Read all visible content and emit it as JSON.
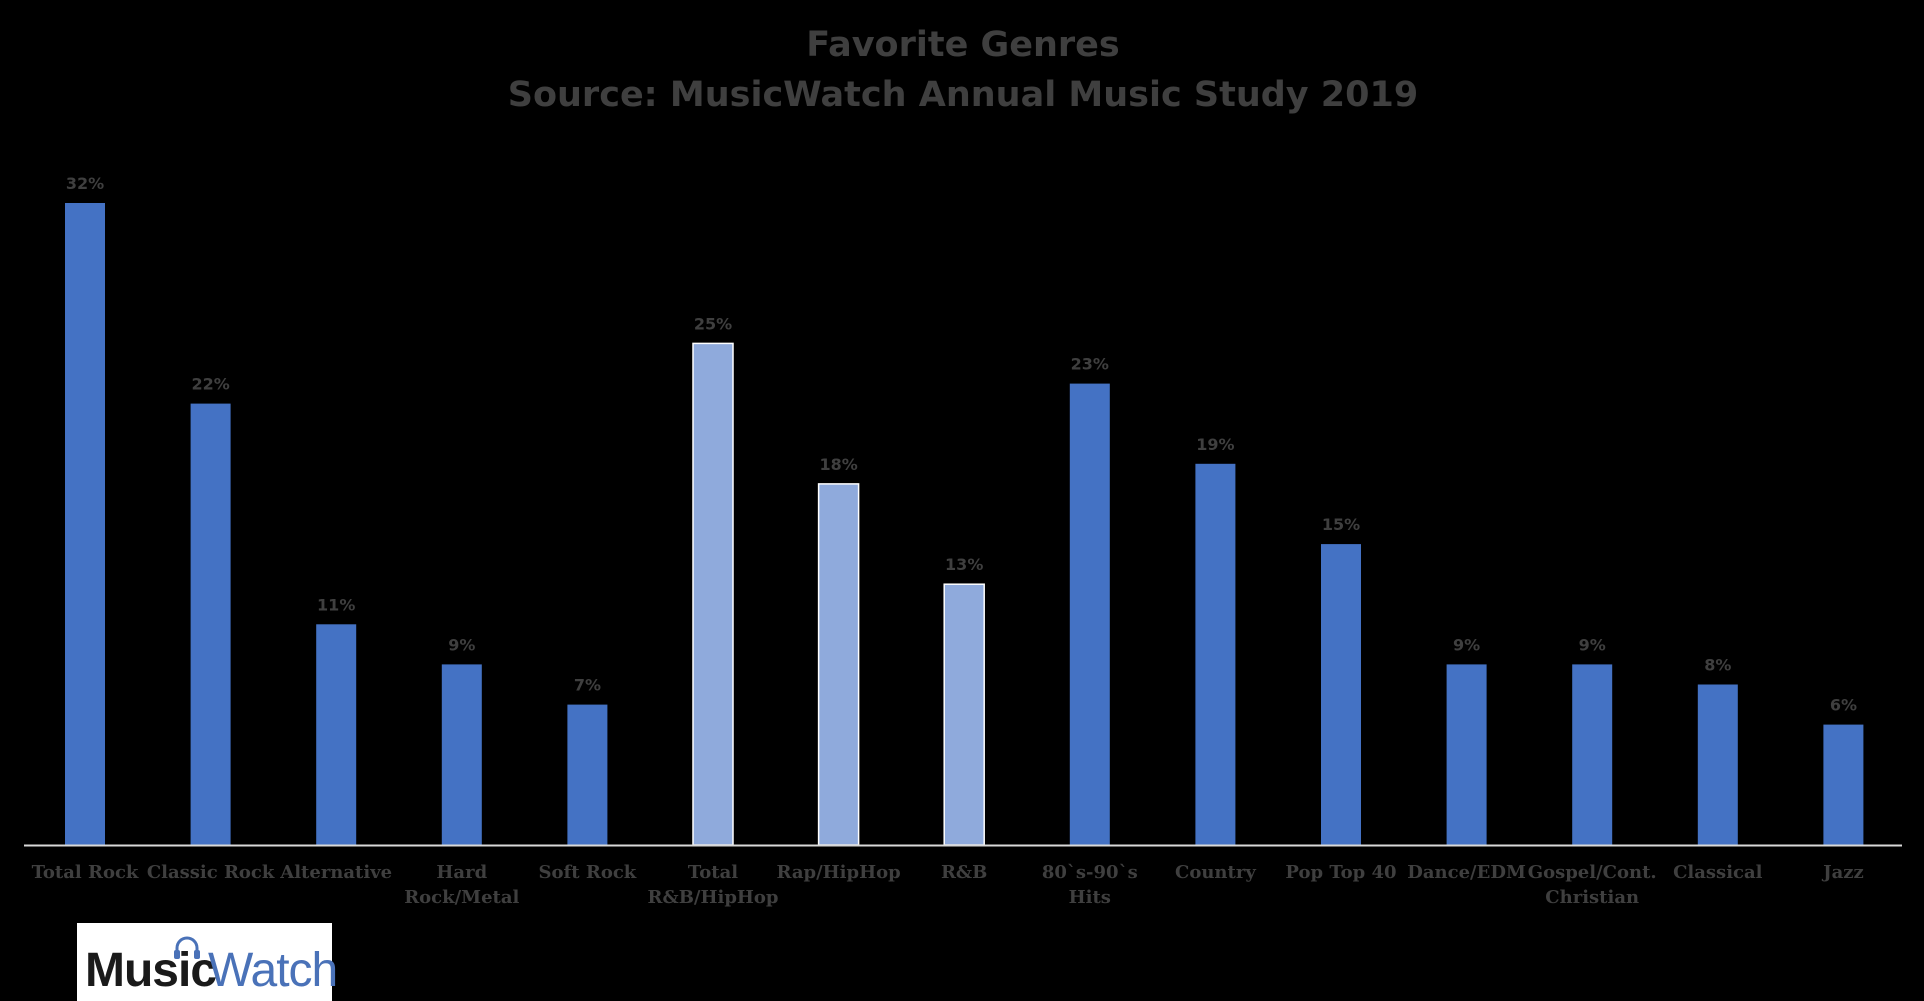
{
  "chart_data": {
    "type": "bar",
    "title": "Favorite Genres",
    "subtitle": "Source: MusicWatch Annual Music Study 2019",
    "categories": [
      [
        "Total Rock"
      ],
      [
        "Classic Rock"
      ],
      [
        "Alternative"
      ],
      [
        "Hard",
        "Rock/Metal"
      ],
      [
        "Soft Rock"
      ],
      [
        "Total",
        "R&B/HipHop"
      ],
      [
        "Rap/HipHop"
      ],
      [
        "R&B"
      ],
      [
        "80`s-90`s",
        "Hits"
      ],
      [
        "Country"
      ],
      [
        "Pop Top 40"
      ],
      [
        "Dance/EDM"
      ],
      [
        "Gospel/Cont.",
        "Christian"
      ],
      [
        "Classical"
      ],
      [
        "Jazz"
      ]
    ],
    "values": [
      32,
      22,
      11,
      9,
      7,
      25,
      18,
      13,
      23,
      19,
      15,
      9,
      9,
      8,
      6
    ],
    "data_labels": [
      "32%",
      "22%",
      "11%",
      "9%",
      "7%",
      "25%",
      "18%",
      "13%",
      "23%",
      "19%",
      "15%",
      "9%",
      "9%",
      "8%",
      "6%"
    ],
    "highlight_indices": [
      5,
      6,
      7
    ],
    "ylim": [
      0,
      32
    ],
    "grid": false,
    "xlabel": "",
    "ylabel": ""
  },
  "colors": {
    "background": "#000000",
    "bar": "#4472c4",
    "bar_highlight": "#8faadc",
    "text": "#3f3f3f",
    "axis": "#d9d9d9"
  },
  "logo": {
    "word_1": "Music",
    "word_2": "Watch",
    "icon": "headphones-icon"
  }
}
